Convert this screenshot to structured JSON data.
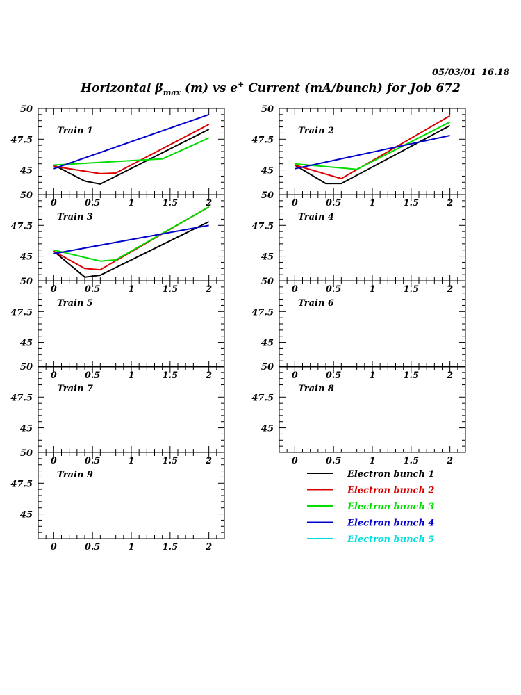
{
  "header": {
    "date": "05/03/01",
    "time": "16.18",
    "title_prefix": "Horizontal β",
    "title_sub": "max",
    "title_mid": " (m) vs e",
    "title_sup": "+",
    "title_suffix": " Current (mA/bunch) for Job 672"
  },
  "colors": {
    "Electron bunch 1": "#000000",
    "Electron bunch 2": "#dd0000",
    "Electron bunch 3": "#00dd00",
    "Electron bunch 4": "#0000cc",
    "Electron bunch 5": "#00dddd"
  },
  "chart_data": {
    "type": "line",
    "x_ticks": [
      "0",
      "0.5",
      "1",
      "1.5",
      "2"
    ],
    "y_ticks": [
      "45",
      "47.5",
      "50"
    ],
    "xlim": [
      -0.2,
      2.2
    ],
    "ylim": [
      43.0,
      50.0
    ],
    "legend": [
      "Electron bunch 1",
      "Electron bunch 2",
      "Electron bunch 3",
      "Electron bunch 4",
      "Electron bunch 5"
    ],
    "panels": [
      {
        "label": "Train 1",
        "series": [
          {
            "name": "Electron bunch 1",
            "x": [
              0,
              0.4,
              0.6,
              2
            ],
            "y": [
              45.4,
              44.1,
              43.85,
              48.3
            ]
          },
          {
            "name": "Electron bunch 2",
            "x": [
              0,
              0.6,
              0.8,
              2
            ],
            "y": [
              45.3,
              44.7,
              44.75,
              48.7
            ]
          },
          {
            "name": "Electron bunch 3",
            "x": [
              0,
              1.4,
              2
            ],
            "y": [
              45.4,
              45.9,
              47.6
            ]
          },
          {
            "name": "Electron bunch 4",
            "x": [
              0,
              2
            ],
            "y": [
              45.1,
              49.5
            ]
          }
        ]
      },
      {
        "label": "Train 2",
        "series": [
          {
            "name": "Electron bunch 1",
            "x": [
              0,
              0.4,
              0.6,
              2
            ],
            "y": [
              45.4,
              43.9,
              43.9,
              48.6
            ]
          },
          {
            "name": "Electron bunch 2",
            "x": [
              0,
              0.6,
              2
            ],
            "y": [
              45.4,
              44.3,
              49.4
            ]
          },
          {
            "name": "Electron bunch 3",
            "x": [
              0,
              0.8,
              2
            ],
            "y": [
              45.5,
              45.05,
              48.9
            ]
          },
          {
            "name": "Electron bunch 4",
            "x": [
              0,
              2
            ],
            "y": [
              45.1,
              47.8
            ]
          }
        ]
      },
      {
        "label": "Train 3",
        "series": [
          {
            "name": "Electron bunch 1",
            "x": [
              0,
              0.4,
              0.6,
              2
            ],
            "y": [
              45.4,
              43.3,
              43.45,
              47.8
            ]
          },
          {
            "name": "Electron bunch 2",
            "x": [
              0,
              0.4,
              0.6,
              2
            ],
            "y": [
              45.4,
              44.0,
              43.9,
              49.0
            ]
          },
          {
            "name": "Electron bunch 3",
            "x": [
              0,
              0.6,
              0.8,
              2
            ],
            "y": [
              45.5,
              44.6,
              44.7,
              49.0
            ]
          },
          {
            "name": "Electron bunch 4",
            "x": [
              0,
              2
            ],
            "y": [
              45.2,
              47.5
            ]
          }
        ]
      },
      {
        "label": "Train 4",
        "series": []
      },
      {
        "label": "Train 5",
        "series": []
      },
      {
        "label": "Train 6",
        "series": []
      },
      {
        "label": "Train 7",
        "series": []
      },
      {
        "label": "Train 8",
        "series": []
      },
      {
        "label": "Train 9",
        "series": []
      }
    ]
  }
}
